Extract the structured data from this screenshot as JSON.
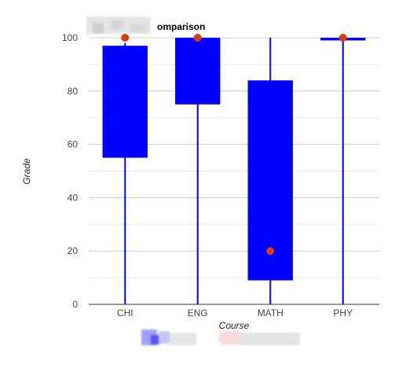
{
  "chart_data": {
    "type": "candlestick",
    "title": "omparison",
    "xlabel": "Course",
    "ylabel": "Grade",
    "ylim": [
      0,
      100
    ],
    "yticks": [
      0,
      20,
      40,
      60,
      80,
      100
    ],
    "grid": true,
    "legend_position": "bottom",
    "categories": [
      "CHI",
      "ENG",
      "MATH",
      "PHY"
    ],
    "boxes": [
      {
        "category": "CHI",
        "low": 0,
        "open": 55,
        "close": 97,
        "high": 98
      },
      {
        "category": "ENG",
        "low": 0,
        "open": 75,
        "close": 100,
        "high": 100
      },
      {
        "category": "MATH",
        "low": 0,
        "open": 9,
        "close": 84,
        "high": 100
      },
      {
        "category": "PHY",
        "low": 0,
        "open": 99,
        "close": 100,
        "high": 100
      }
    ],
    "points": [
      {
        "category": "CHI",
        "value": 100
      },
      {
        "category": "ENG",
        "value": 100
      },
      {
        "category": "MATH",
        "value": 20
      },
      {
        "category": "PHY",
        "value": 100
      }
    ],
    "colors": {
      "box": "#0000ff",
      "point": "#dc3912",
      "grid": "#cccccc",
      "minor_grid": "#ebebeb",
      "axis": "#333333"
    }
  }
}
